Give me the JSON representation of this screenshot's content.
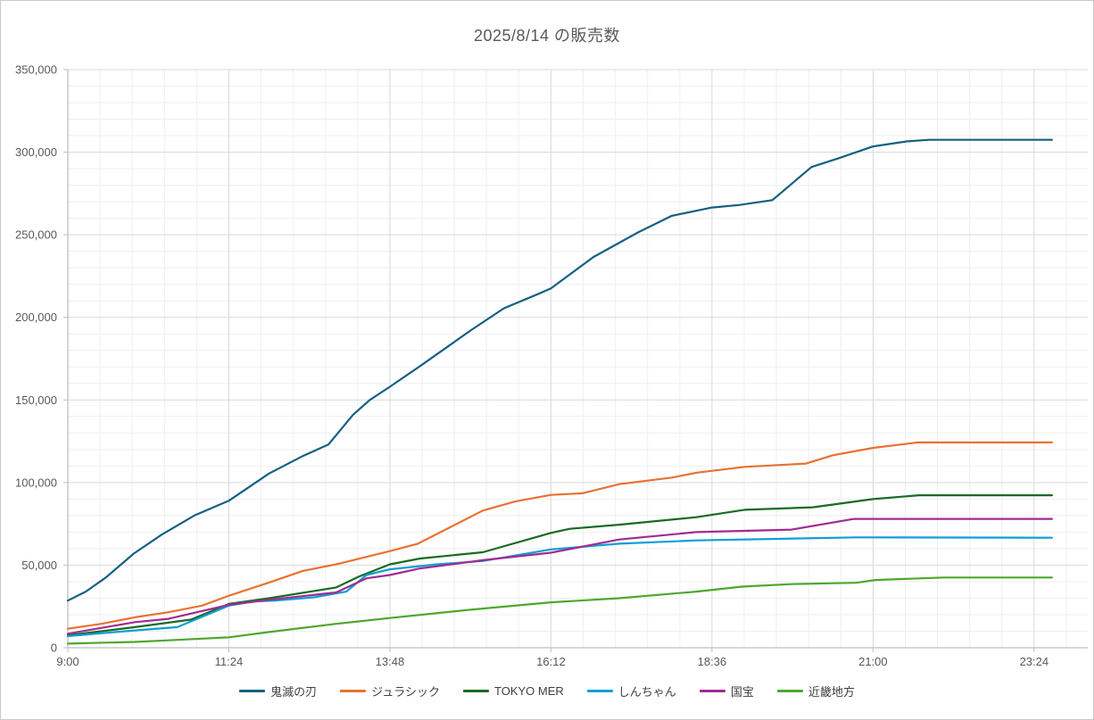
{
  "chart_data": {
    "type": "line",
    "title": "2025/8/14 の販売数",
    "legend_position": "bottom",
    "grid": "major-and-minor",
    "x_axis": {
      "unit": "time (minutes from midnight)",
      "min": 540,
      "max": 1452,
      "major_tick_minutes": [
        540,
        684,
        828,
        972,
        1116,
        1260,
        1404
      ],
      "tick_labels": [
        "9:00",
        "11:24",
        "13:48",
        "16:12",
        "18:36",
        "21:00",
        "23:24"
      ],
      "minor_interval_minutes": 28.8
    },
    "y_axis": {
      "min": 0,
      "max": 350000,
      "major_interval": 50000,
      "minor_interval": 10000,
      "tick_labels": [
        "0",
        "50,000",
        "100,000",
        "150,000",
        "200,000",
        "250,000",
        "300,000",
        "350,000"
      ]
    },
    "series": [
      {
        "name": "鬼滅の刃",
        "color": "#156082",
        "points": [
          [
            540,
            28500
          ],
          [
            556,
            34000
          ],
          [
            574,
            42500
          ],
          [
            599,
            57000
          ],
          [
            624,
            68500
          ],
          [
            653,
            80000
          ],
          [
            684,
            89000
          ],
          [
            720,
            105500
          ],
          [
            750,
            116000
          ],
          [
            773,
            123000
          ],
          [
            795,
            141000
          ],
          [
            810,
            150000
          ],
          [
            828,
            158000
          ],
          [
            855,
            170500
          ],
          [
            900,
            192000
          ],
          [
            930,
            205500
          ],
          [
            960,
            214000
          ],
          [
            972,
            217500
          ],
          [
            1010,
            236500
          ],
          [
            1050,
            251500
          ],
          [
            1080,
            261500
          ],
          [
            1116,
            266500
          ],
          [
            1140,
            268000
          ],
          [
            1170,
            271000
          ],
          [
            1205,
            291000
          ],
          [
            1230,
            296500
          ],
          [
            1260,
            303500
          ],
          [
            1290,
            306500
          ],
          [
            1310,
            307500
          ],
          [
            1420,
            307500
          ]
        ]
      },
      {
        "name": "ジュラシック",
        "color": "#E97132",
        "points": [
          [
            540,
            11500
          ],
          [
            570,
            14500
          ],
          [
            600,
            18400
          ],
          [
            630,
            21500
          ],
          [
            660,
            25500
          ],
          [
            684,
            31500
          ],
          [
            720,
            39500
          ],
          [
            750,
            46500
          ],
          [
            780,
            50500
          ],
          [
            828,
            58500
          ],
          [
            853,
            63000
          ],
          [
            911,
            83000
          ],
          [
            940,
            88500
          ],
          [
            972,
            92500
          ],
          [
            1000,
            93500
          ],
          [
            1033,
            99000
          ],
          [
            1080,
            103000
          ],
          [
            1103,
            106000
          ],
          [
            1145,
            109500
          ],
          [
            1200,
            111500
          ],
          [
            1224,
            116500
          ],
          [
            1260,
            121000
          ],
          [
            1300,
            124300
          ],
          [
            1420,
            124300
          ]
        ]
      },
      {
        "name": "TOKYO MER",
        "color": "#196B24",
        "points": [
          [
            540,
            7500
          ],
          [
            600,
            12500
          ],
          [
            650,
            17000
          ],
          [
            684,
            26500
          ],
          [
            720,
            30000
          ],
          [
            780,
            36500
          ],
          [
            800,
            43000
          ],
          [
            828,
            50500
          ],
          [
            855,
            54000
          ],
          [
            911,
            57800
          ],
          [
            972,
            69500
          ],
          [
            989,
            72000
          ],
          [
            1033,
            74500
          ],
          [
            1102,
            79000
          ],
          [
            1145,
            83500
          ],
          [
            1206,
            85000
          ],
          [
            1260,
            90000
          ],
          [
            1301,
            92300
          ],
          [
            1420,
            92300
          ]
        ]
      },
      {
        "name": "しんちゃん",
        "color": "#0F9ED5",
        "points": [
          [
            540,
            7000
          ],
          [
            600,
            10500
          ],
          [
            638,
            12500
          ],
          [
            684,
            25500
          ],
          [
            706,
            28000
          ],
          [
            725,
            28500
          ],
          [
            760,
            30500
          ],
          [
            789,
            34000
          ],
          [
            807,
            44000
          ],
          [
            828,
            47500
          ],
          [
            870,
            50500
          ],
          [
            911,
            52500
          ],
          [
            972,
            59500
          ],
          [
            1033,
            63000
          ],
          [
            1102,
            65000
          ],
          [
            1245,
            66800
          ],
          [
            1420,
            66600
          ]
        ]
      },
      {
        "name": "国宝",
        "color": "#A02B93",
        "points": [
          [
            540,
            8500
          ],
          [
            600,
            15500
          ],
          [
            630,
            17500
          ],
          [
            684,
            26000
          ],
          [
            720,
            29000
          ],
          [
            780,
            33500
          ],
          [
            807,
            42000
          ],
          [
            828,
            44000
          ],
          [
            855,
            48000
          ],
          [
            911,
            53000
          ],
          [
            972,
            57500
          ],
          [
            1033,
            65500
          ],
          [
            1102,
            70000
          ],
          [
            1187,
            71500
          ],
          [
            1243,
            78000
          ],
          [
            1420,
            78000
          ]
        ]
      },
      {
        "name": "近畿地方",
        "color": "#4EA72E",
        "points": [
          [
            540,
            2500
          ],
          [
            600,
            3500
          ],
          [
            630,
            4500
          ],
          [
            684,
            6300
          ],
          [
            720,
            9500
          ],
          [
            780,
            14500
          ],
          [
            828,
            18000
          ],
          [
            900,
            23000
          ],
          [
            972,
            27500
          ],
          [
            1033,
            30000
          ],
          [
            1102,
            34000
          ],
          [
            1143,
            37000
          ],
          [
            1187,
            38500
          ],
          [
            1245,
            39300
          ],
          [
            1262,
            41000
          ],
          [
            1323,
            42500
          ],
          [
            1420,
            42500
          ]
        ]
      }
    ],
    "style_colors": {
      "title_text": "#595959",
      "tick_text": "#595959",
      "legend_text": "#404040",
      "major_gridline": "#D9D9D9",
      "minor_gridline": "#EFEFEF",
      "axis_line": "#BFBFBF",
      "background": "#FFFFFF"
    }
  }
}
